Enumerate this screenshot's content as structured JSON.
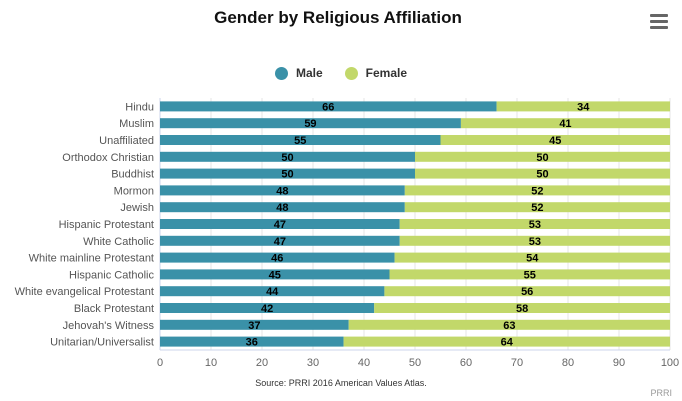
{
  "chart_data": {
    "type": "bar",
    "stacked": true,
    "orientation": "horizontal",
    "title": "Gender by Religious Affiliation",
    "categories": [
      "Hindu",
      "Muslim",
      "Unaffiliated",
      "Orthodox Christian",
      "Buddhist",
      "Mormon",
      "Jewish",
      "Hispanic Protestant",
      "White Catholic",
      "White mainline Protestant",
      "Hispanic Catholic",
      "White evangelical Protestant",
      "Black Protestant",
      "Jehovah's Witness",
      "Unitarian/Universalist"
    ],
    "series": [
      {
        "name": "Male",
        "color": "#3a91a8",
        "values": [
          66,
          59,
          55,
          50,
          50,
          48,
          48,
          47,
          47,
          46,
          45,
          44,
          42,
          37,
          36
        ]
      },
      {
        "name": "Female",
        "color": "#c2d86a",
        "values": [
          34,
          41,
          45,
          50,
          50,
          52,
          52,
          53,
          53,
          54,
          55,
          56,
          58,
          63,
          64
        ]
      }
    ],
    "xlim": [
      0,
      100
    ],
    "xticks": [
      0,
      10,
      20,
      30,
      40,
      50,
      60,
      70,
      80,
      90,
      100
    ],
    "legend_position": "top-center",
    "grid": true,
    "data_labels": true
  },
  "source": "Source: PRRI 2016 American Values Atlas.",
  "credit": "PRRI",
  "menu_icon": "hamburger-menu-icon"
}
